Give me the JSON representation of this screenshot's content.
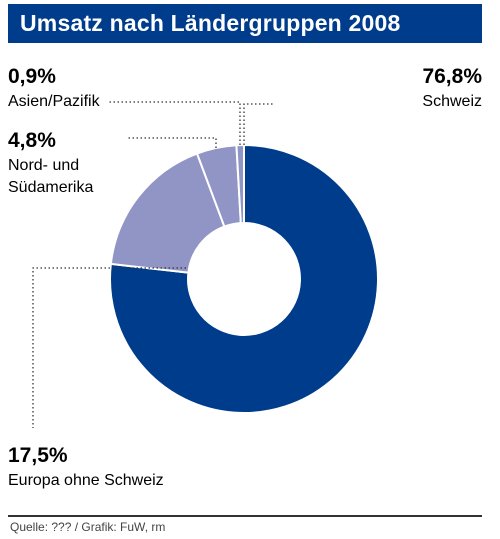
{
  "title": "Umsatz nach Ländergruppen 2008",
  "source": "Quelle: ??? / Grafik: FuW, rm",
  "colors": {
    "title_bg": "#003c8c",
    "title_text": "#ffffff",
    "slice_dark": "#003c8c",
    "slice_light": "#9195c6",
    "leader": "#333333"
  },
  "chart_data": {
    "type": "pie",
    "variant": "donut",
    "title": "Umsatz nach Ländergruppen 2008",
    "slices": [
      {
        "label": "Schweiz",
        "value": 76.8,
        "display": "76,8%",
        "label_lines": [
          "Schweiz"
        ],
        "color": "#003c8c"
      },
      {
        "label": "Europa ohne Schweiz",
        "value": 17.5,
        "display": "17,5%",
        "label_lines": [
          "Europa ohne Schweiz"
        ],
        "color": "#9195c6"
      },
      {
        "label": "Nord- und Südamerika",
        "value": 4.8,
        "display": "4,8%",
        "label_lines": [
          "Nord- und",
          "Südamerika"
        ],
        "color": "#9195c6"
      },
      {
        "label": "Asien/Pazifik",
        "value": 0.9,
        "display": "0,9%",
        "label_lines": [
          "Asien/Pazifik"
        ],
        "color": "#9195c6"
      }
    ],
    "legend": "none",
    "grid": false
  }
}
